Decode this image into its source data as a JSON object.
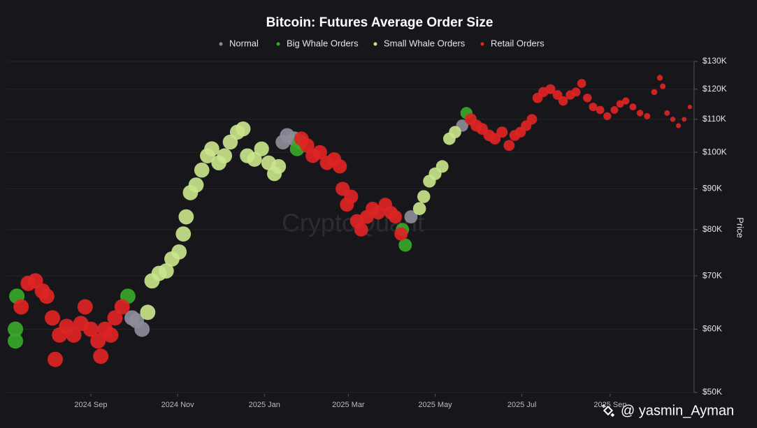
{
  "chart_data": {
    "type": "scatter",
    "title": "Bitcoin: Futures Average Order Size",
    "y_label": "Price",
    "watermark": "CryptoQuant",
    "log_y": true,
    "grid": true,
    "legend": "top",
    "xlim": [
      "2024-07-08",
      "2025-10-30"
    ],
    "xticks": [
      {
        "value": "2024-09-01",
        "label": "2024 Sep"
      },
      {
        "value": "2024-11-01",
        "label": "2024 Nov"
      },
      {
        "value": "2025-01-01",
        "label": "2025 Jan"
      },
      {
        "value": "2025-03-01",
        "label": "2025 Mar"
      },
      {
        "value": "2025-05-01",
        "label": "2025 May"
      },
      {
        "value": "2025-07-01",
        "label": "2025 Jul"
      },
      {
        "value": "2025-09-01",
        "label": "2025 Sep"
      }
    ],
    "ylim": [
      50000,
      130000
    ],
    "yticks": [
      {
        "value": 50000,
        "label": "$50K"
      },
      {
        "value": 60000,
        "label": "$60K"
      },
      {
        "value": 70000,
        "label": "$70K"
      },
      {
        "value": 80000,
        "label": "$80K"
      },
      {
        "value": 90000,
        "label": "$90K"
      },
      {
        "value": 100000,
        "label": "$100K"
      },
      {
        "value": 110000,
        "label": "$110K"
      },
      {
        "value": 120000,
        "label": "$120K"
      },
      {
        "value": 130000,
        "label": "$130K"
      }
    ],
    "series": [
      {
        "name": "Normal",
        "color": "#8e8c99",
        "x": [
          "2024-09-30",
          "2024-10-03",
          "2024-10-07",
          "2025-01-14",
          "2025-01-17",
          "2025-01-22",
          "2025-04-14",
          "2025-05-20"
        ],
        "values": [
          62000,
          61500,
          60000,
          103000,
          105000,
          104000,
          83000,
          108000
        ]
      },
      {
        "name": "Big Whale Orders",
        "color": "#3aa829",
        "x": [
          "2024-07-10",
          "2024-07-10",
          "2024-07-11",
          "2024-09-27",
          "2025-01-24",
          "2025-01-26",
          "2025-04-08",
          "2025-04-10",
          "2025-05-23"
        ],
        "values": [
          58000,
          60000,
          66000,
          66000,
          101000,
          103000,
          80000,
          76500,
          112000
        ]
      },
      {
        "name": "Small Whale Orders",
        "color": "#c9e48a",
        "x": [
          "2024-10-11",
          "2024-10-14",
          "2024-10-19",
          "2024-10-24",
          "2024-10-28",
          "2024-11-02",
          "2024-11-05",
          "2024-11-07",
          "2024-11-10",
          "2024-11-14",
          "2024-11-18",
          "2024-11-22",
          "2024-11-25",
          "2024-11-30",
          "2024-12-04",
          "2024-12-08",
          "2024-12-13",
          "2024-12-17",
          "2024-12-20",
          "2024-12-25",
          "2024-12-30",
          "2025-01-04",
          "2025-01-08",
          "2025-01-11",
          "2025-04-20",
          "2025-04-23",
          "2025-04-27",
          "2025-05-01",
          "2025-05-06",
          "2025-05-11",
          "2025-05-15"
        ],
        "values": [
          63000,
          69000,
          70500,
          71000,
          73500,
          75000,
          79000,
          83000,
          89000,
          91000,
          95000,
          99000,
          101000,
          97000,
          99000,
          103000,
          106000,
          107000,
          99000,
          98000,
          101000,
          97000,
          94000,
          96000,
          85000,
          88000,
          92000,
          94000,
          96000,
          104000,
          106000
        ]
      },
      {
        "name": "Retail Orders",
        "color": "#e02424",
        "x": [
          "2024-07-14",
          "2024-07-19",
          "2024-07-24",
          "2024-07-29",
          "2024-08-01",
          "2024-08-05",
          "2024-08-07",
          "2024-08-10",
          "2024-08-15",
          "2024-08-20",
          "2024-08-25",
          "2024-08-28",
          "2024-09-01",
          "2024-09-06",
          "2024-09-08",
          "2024-09-11",
          "2024-09-15",
          "2024-09-18",
          "2024-09-23",
          "2025-01-27",
          "2025-01-31",
          "2025-02-04",
          "2025-02-09",
          "2025-02-14",
          "2025-02-19",
          "2025-02-23",
          "2025-02-25",
          "2025-02-28",
          "2025-03-03",
          "2025-03-07",
          "2025-03-10",
          "2025-03-14",
          "2025-03-18",
          "2025-03-22",
          "2025-03-27",
          "2025-03-31",
          "2025-04-03",
          "2025-04-07",
          "2025-05-26",
          "2025-05-30",
          "2025-06-03",
          "2025-06-08",
          "2025-06-12",
          "2025-06-17",
          "2025-06-22",
          "2025-06-26",
          "2025-06-30",
          "2025-07-04",
          "2025-07-08",
          "2025-07-12",
          "2025-07-16",
          "2025-07-21",
          "2025-07-26",
          "2025-07-30",
          "2025-08-04",
          "2025-08-08",
          "2025-08-12",
          "2025-08-16",
          "2025-08-20",
          "2025-08-25",
          "2025-08-30",
          "2025-09-04",
          "2025-09-08",
          "2025-09-12",
          "2025-09-17",
          "2025-09-22",
          "2025-09-27",
          "2025-10-02",
          "2025-10-06",
          "2025-10-08",
          "2025-10-11",
          "2025-10-15",
          "2025-10-19",
          "2025-10-23",
          "2025-10-27"
        ],
        "values": [
          64000,
          68500,
          69000,
          67000,
          66000,
          62000,
          55000,
          59000,
          60500,
          59000,
          61000,
          64000,
          60000,
          58000,
          55500,
          60000,
          59000,
          62000,
          64000,
          104000,
          102000,
          99000,
          100000,
          97000,
          98000,
          96000,
          90000,
          86000,
          88000,
          82000,
          80000,
          83000,
          85000,
          84000,
          86000,
          84000,
          83000,
          79000,
          110000,
          108000,
          107000,
          105000,
          104000,
          106000,
          102000,
          105000,
          106000,
          108000,
          110000,
          117000,
          119000,
          120000,
          118000,
          116000,
          118000,
          119000,
          122000,
          117000,
          114000,
          113000,
          111000,
          113000,
          115000,
          116000,
          114000,
          112000,
          111000,
          119000,
          124000,
          121000,
          112000,
          110000,
          108000,
          110000,
          114000
        ]
      }
    ]
  },
  "credit": "@ yasmin_Ayman"
}
